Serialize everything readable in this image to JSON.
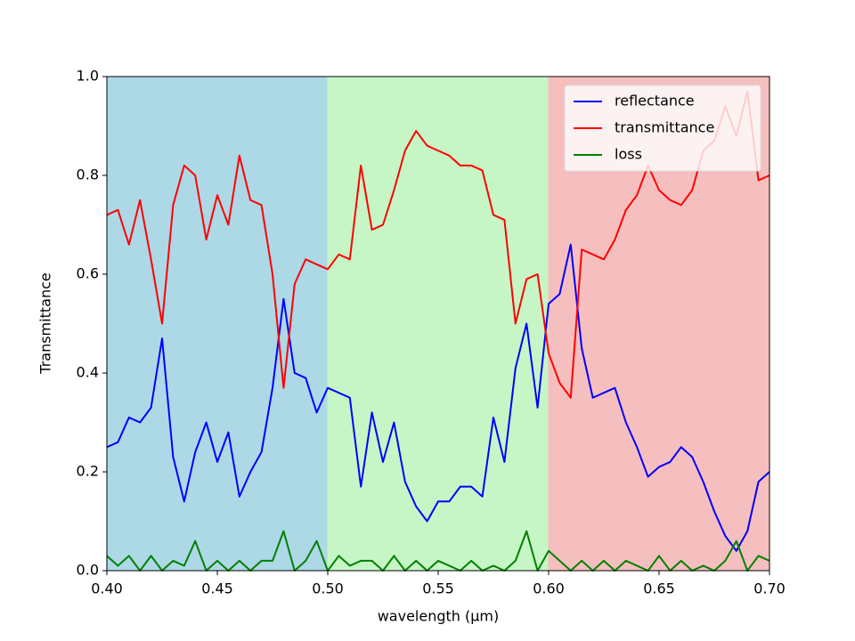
{
  "chart_data": {
    "type": "line",
    "xlabel": "wavelength (µm)",
    "ylabel": "Transmittance",
    "xlim": [
      0.4,
      0.7
    ],
    "ylim": [
      0,
      1
    ],
    "xticks": [
      {
        "value": 0.4,
        "label": "0.40"
      },
      {
        "value": 0.45,
        "label": "0.45"
      },
      {
        "value": 0.5,
        "label": "0.50"
      },
      {
        "value": 0.55,
        "label": "0.55"
      },
      {
        "value": 0.6,
        "label": "0.60"
      },
      {
        "value": 0.65,
        "label": "0.65"
      },
      {
        "value": 0.7,
        "label": "0.70"
      }
    ],
    "yticks": [
      {
        "value": 0,
        "label": "0.0"
      },
      {
        "value": 0.2,
        "label": "0.2"
      },
      {
        "value": 0.4,
        "label": "0.4"
      },
      {
        "value": 0.6,
        "label": "0.6"
      },
      {
        "value": 0.8,
        "label": "0.8"
      },
      {
        "value": 1,
        "label": "1.0"
      }
    ],
    "grid": false,
    "legend": "upper right",
    "spans": [
      {
        "from": 0.4,
        "to": 0.5,
        "color": "lightblue"
      },
      {
        "from": 0.5,
        "to": 0.6,
        "color": "#c6f6c6"
      },
      {
        "from": 0.6,
        "to": 0.7,
        "color": "#f6bfbf"
      }
    ],
    "x": [
      0.4,
      0.405,
      0.41,
      0.415,
      0.42,
      0.425,
      0.43,
      0.435,
      0.44,
      0.445,
      0.45,
      0.455,
      0.46,
      0.465,
      0.47,
      0.475,
      0.48,
      0.485,
      0.49,
      0.495,
      0.5,
      0.505,
      0.51,
      0.515,
      0.52,
      0.525,
      0.53,
      0.535,
      0.54,
      0.545,
      0.55,
      0.555,
      0.56,
      0.565,
      0.57,
      0.575,
      0.58,
      0.585,
      0.59,
      0.595,
      0.6,
      0.605,
      0.61,
      0.615,
      0.62,
      0.625,
      0.63,
      0.635,
      0.64,
      0.645,
      0.65,
      0.655,
      0.66,
      0.665,
      0.67,
      0.675,
      0.68,
      0.685,
      0.69,
      0.695,
      0.7
    ],
    "series": [
      {
        "name": "reflectance",
        "color": "#0000ff",
        "values": [
          0.25,
          0.26,
          0.31,
          0.3,
          0.33,
          0.47,
          0.23,
          0.14,
          0.24,
          0.3,
          0.22,
          0.28,
          0.15,
          0.2,
          0.24,
          0.37,
          0.55,
          0.4,
          0.39,
          0.32,
          0.37,
          0.36,
          0.35,
          0.17,
          0.32,
          0.22,
          0.3,
          0.18,
          0.13,
          0.1,
          0.14,
          0.14,
          0.17,
          0.17,
          0.15,
          0.31,
          0.22,
          0.41,
          0.5,
          0.33,
          0.54,
          0.56,
          0.66,
          0.45,
          0.35,
          0.36,
          0.37,
          0.3,
          0.25,
          0.19,
          0.21,
          0.22,
          0.25,
          0.23,
          0.18,
          0.12,
          0.07,
          0.04,
          0.08,
          0.18,
          0.2
        ]
      },
      {
        "name": "transmittance",
        "color": "#ff0000",
        "values": [
          0.72,
          0.73,
          0.66,
          0.75,
          0.63,
          0.5,
          0.74,
          0.82,
          0.8,
          0.67,
          0.76,
          0.7,
          0.84,
          0.75,
          0.74,
          0.6,
          0.37,
          0.58,
          0.63,
          0.62,
          0.61,
          0.64,
          0.63,
          0.82,
          0.69,
          0.7,
          0.77,
          0.85,
          0.89,
          0.86,
          0.85,
          0.84,
          0.82,
          0.82,
          0.81,
          0.72,
          0.71,
          0.5,
          0.59,
          0.6,
          0.44,
          0.38,
          0.35,
          0.65,
          0.64,
          0.63,
          0.67,
          0.73,
          0.76,
          0.82,
          0.77,
          0.75,
          0.74,
          0.77,
          0.85,
          0.87,
          0.94,
          0.88,
          0.97,
          0.79,
          0.8
        ]
      },
      {
        "name": "loss",
        "color": "#008000",
        "values": [
          0.03,
          0.01,
          0.03,
          0.0,
          0.03,
          0.0,
          0.02,
          0.01,
          0.06,
          0.0,
          0.02,
          0.0,
          0.02,
          0.0,
          0.02,
          0.02,
          0.08,
          0.0,
          0.02,
          0.06,
          0.0,
          0.03,
          0.01,
          0.02,
          0.02,
          0.0,
          0.03,
          0.0,
          0.02,
          0.0,
          0.02,
          0.01,
          0.0,
          0.02,
          0.0,
          0.01,
          0.0,
          0.02,
          0.08,
          0.0,
          0.04,
          0.02,
          0.0,
          0.02,
          0.0,
          0.02,
          0.0,
          0.02,
          0.01,
          0.0,
          0.03,
          0.0,
          0.02,
          0.0,
          0.01,
          0.0,
          0.02,
          0.06,
          0.0,
          0.03,
          0.02
        ]
      }
    ]
  }
}
